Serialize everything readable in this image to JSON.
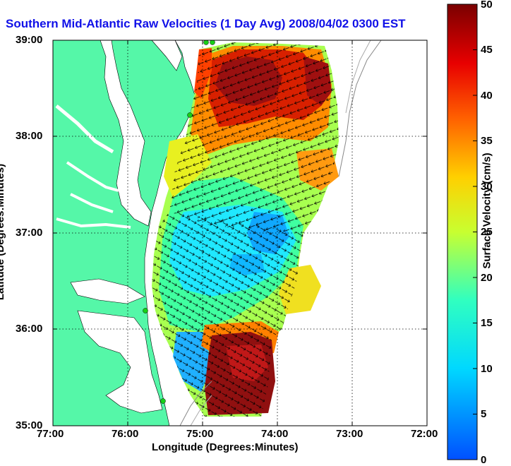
{
  "title": "Southern Mid-Atlantic Raw Velocities (1 Day Avg) 2008/04/02 0300 EST",
  "xlabel": "Longitude (Degrees:Minutes)",
  "ylabel": "Latitude (Degrees:Minutes)",
  "x_ticks": [
    "77:00",
    "76:00",
    "75:00",
    "74:00",
    "73:00",
    "72:00"
  ],
  "y_ticks": [
    "39:00",
    "38:00",
    "37:00",
    "36:00",
    "35:00"
  ],
  "colorbar": {
    "label": "Surface Velocity (cm/s)",
    "ticks": [
      "50",
      "45",
      "40",
      "35",
      "30",
      "25",
      "20",
      "15",
      "10",
      "5",
      "0"
    ],
    "min": 0,
    "max": 50
  },
  "map": {
    "lon_range": [
      -77,
      -72
    ],
    "lat_range": [
      35,
      39
    ],
    "grid": true,
    "land_color": "#55f7a8",
    "water_color": "#ffffff",
    "station_color": "#18d018"
  }
}
